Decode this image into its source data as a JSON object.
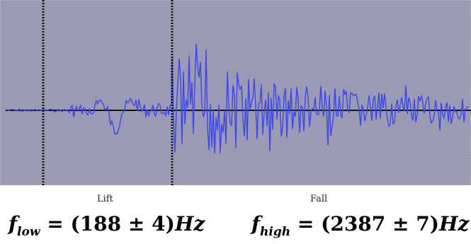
{
  "panel": {
    "background_color": "#9a9ab4",
    "baseline_color": "#111111",
    "waveform_color": "#3c46ee",
    "marker_color": "#111111"
  },
  "labels": {
    "lift": "Lift",
    "fall": "Fall"
  },
  "formulas": {
    "low": {
      "symbol": "f",
      "subscript": "low",
      "expression": " = (188 ± 4)",
      "unit": "Hz"
    },
    "high": {
      "symbol": "f",
      "subscript": "high",
      "expression": " = (2387 ± 7)",
      "unit": "Hz"
    }
  }
}
